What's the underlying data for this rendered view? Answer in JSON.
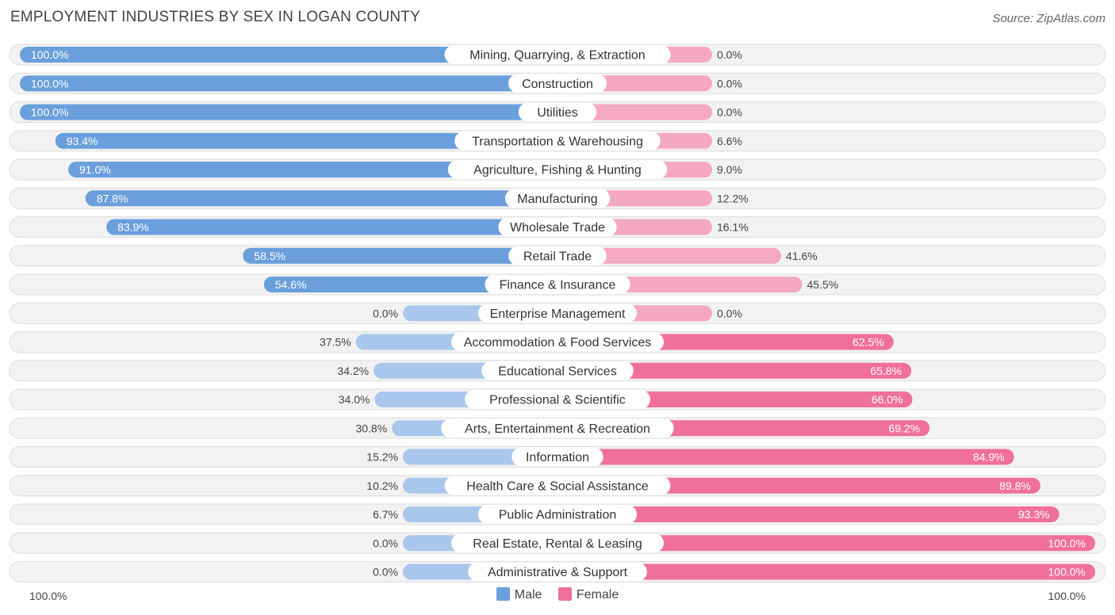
{
  "header": {
    "title": "EMPLOYMENT INDUSTRIES BY SEX IN LOGAN COUNTY",
    "source": "Source: ZipAtlas.com"
  },
  "axis": {
    "left_label": "100.0%",
    "right_label": "100.0%"
  },
  "legend": {
    "male_label": "Male",
    "female_label": "Female"
  },
  "colors": {
    "male_strong": "#6a9fdc",
    "male_light": "#a9c7ec",
    "female_strong": "#f07099",
    "female_light": "#f5a8c1",
    "row_bg": "#f2f2f2",
    "row_border": "#dddddd"
  },
  "chart_data": {
    "type": "bar",
    "orientation": "horizontal-diverging",
    "title": "EMPLOYMENT INDUSTRIES BY SEX IN LOGAN COUNTY",
    "xlim": [
      -100,
      100
    ],
    "series_names": [
      "Male",
      "Female"
    ],
    "rows": [
      {
        "label": "Mining, Quarrying, & Extraction",
        "male": 100.0,
        "female": 0.0,
        "male_label": "100.0%",
        "female_label": "0.0%"
      },
      {
        "label": "Construction",
        "male": 100.0,
        "female": 0.0,
        "male_label": "100.0%",
        "female_label": "0.0%"
      },
      {
        "label": "Utilities",
        "male": 100.0,
        "female": 0.0,
        "male_label": "100.0%",
        "female_label": "0.0%"
      },
      {
        "label": "Transportation & Warehousing",
        "male": 93.4,
        "female": 6.6,
        "male_label": "93.4%",
        "female_label": "6.6%"
      },
      {
        "label": "Agriculture, Fishing & Hunting",
        "male": 91.0,
        "female": 9.0,
        "male_label": "91.0%",
        "female_label": "9.0%"
      },
      {
        "label": "Manufacturing",
        "male": 87.8,
        "female": 12.2,
        "male_label": "87.8%",
        "female_label": "12.2%"
      },
      {
        "label": "Wholesale Trade",
        "male": 83.9,
        "female": 16.1,
        "male_label": "83.9%",
        "female_label": "16.1%"
      },
      {
        "label": "Retail Trade",
        "male": 58.5,
        "female": 41.6,
        "male_label": "58.5%",
        "female_label": "41.6%"
      },
      {
        "label": "Finance & Insurance",
        "male": 54.6,
        "female": 45.5,
        "male_label": "54.6%",
        "female_label": "45.5%"
      },
      {
        "label": "Enterprise Management",
        "male": 0.0,
        "female": 0.0,
        "male_label": "0.0%",
        "female_label": "0.0%"
      },
      {
        "label": "Accommodation & Food Services",
        "male": 37.5,
        "female": 62.5,
        "male_label": "37.5%",
        "female_label": "62.5%"
      },
      {
        "label": "Educational Services",
        "male": 34.2,
        "female": 65.8,
        "male_label": "34.2%",
        "female_label": "65.8%"
      },
      {
        "label": "Professional & Scientific",
        "male": 34.0,
        "female": 66.0,
        "male_label": "34.0%",
        "female_label": "66.0%"
      },
      {
        "label": "Arts, Entertainment & Recreation",
        "male": 30.8,
        "female": 69.2,
        "male_label": "30.8%",
        "female_label": "69.2%"
      },
      {
        "label": "Information",
        "male": 15.2,
        "female": 84.9,
        "male_label": "15.2%",
        "female_label": "84.9%"
      },
      {
        "label": "Health Care & Social Assistance",
        "male": 10.2,
        "female": 89.8,
        "male_label": "10.2%",
        "female_label": "89.8%"
      },
      {
        "label": "Public Administration",
        "male": 6.7,
        "female": 93.3,
        "male_label": "6.7%",
        "female_label": "93.3%"
      },
      {
        "label": "Real Estate, Rental & Leasing",
        "male": 0.0,
        "female": 100.0,
        "male_label": "0.0%",
        "female_label": "100.0%"
      },
      {
        "label": "Administrative & Support",
        "male": 0.0,
        "female": 100.0,
        "male_label": "0.0%",
        "female_label": "100.0%"
      }
    ]
  }
}
